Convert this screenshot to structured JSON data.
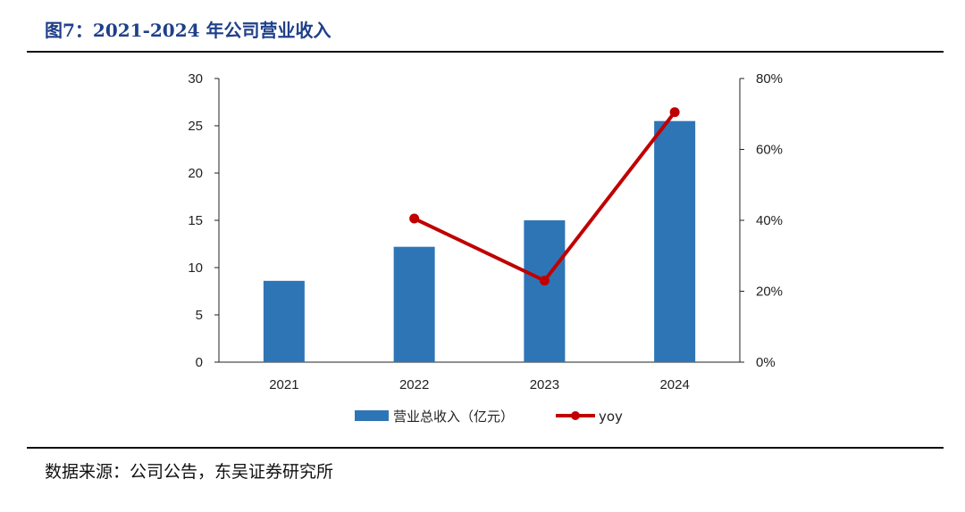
{
  "figure": {
    "title": "图7：2021-2024 年公司营业收入",
    "source": "数据来源：公司公告，东吴证券研究所"
  },
  "colors": {
    "bar": "#2e75b6",
    "line": "#c00000"
  },
  "chart_data": {
    "type": "bar",
    "categories": [
      "2021",
      "2022",
      "2023",
      "2024"
    ],
    "series": [
      {
        "name": "营业总收入（亿元）",
        "type": "bar",
        "axis": "left",
        "values": [
          8.6,
          12.2,
          15.0,
          25.5
        ]
      },
      {
        "name": "yoy",
        "type": "line",
        "axis": "right",
        "values": [
          null,
          0.405,
          0.23,
          0.705
        ]
      }
    ],
    "ylim": [
      0,
      30
    ],
    "yticks": [
      "0",
      "5",
      "10",
      "15",
      "20",
      "25",
      "30"
    ],
    "y2lim": [
      0,
      0.8
    ],
    "y2ticks": [
      "0%",
      "20%",
      "40%",
      "60%",
      "80%"
    ],
    "legend": "bottom",
    "grid": false
  }
}
